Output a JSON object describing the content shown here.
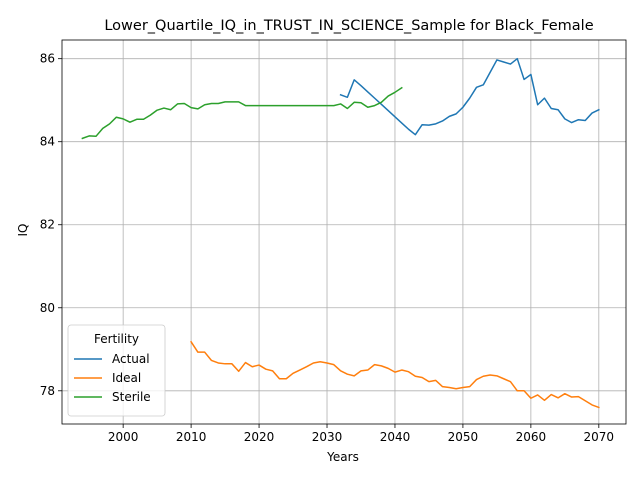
{
  "chart_data": {
    "type": "line",
    "title": "Lower_Quartile_IQ_in_TRUST_IN_SCIENCE_Sample for Black_Female",
    "xlabel": "Years",
    "ylabel": "IQ",
    "xlim": [
      1991,
      2074
    ],
    "ylim": [
      77.2,
      86.45
    ],
    "xticks": [
      2000,
      2010,
      2020,
      2030,
      2040,
      2050,
      2060,
      2070
    ],
    "yticks": [
      78,
      80,
      82,
      84,
      86
    ],
    "grid": true,
    "legend": {
      "title": "Fertility",
      "placement": "lower-left"
    },
    "series": [
      {
        "name": "Actual",
        "color": "#1f77b4",
        "x": [
          2032,
          2033,
          2034,
          2035,
          2036,
          2037,
          2038,
          2039,
          2040,
          2041,
          2042,
          2043,
          2044,
          2045,
          2046,
          2047,
          2048,
          2049,
          2050,
          2051,
          2052,
          2053,
          2054,
          2055,
          2056,
          2057,
          2058,
          2059,
          2060,
          2061,
          2062,
          2063,
          2064,
          2065,
          2066,
          2067,
          2068,
          2069,
          2070
        ],
        "y": [
          85.13,
          85.07,
          85.49,
          85.35,
          85.2,
          85.05,
          84.9,
          84.75,
          84.6,
          84.45,
          84.3,
          84.17,
          84.41,
          84.4,
          84.43,
          84.5,
          84.61,
          84.67,
          84.83,
          85.05,
          85.31,
          85.37,
          85.67,
          85.97,
          85.92,
          85.87,
          86.0,
          85.5,
          85.62,
          84.89,
          85.05,
          84.8,
          84.77,
          84.55,
          84.46,
          84.53,
          84.51,
          84.69,
          84.77
        ]
      },
      {
        "name": "Ideal",
        "color": "#ff7f0e",
        "x": [
          2010,
          2011,
          2012,
          2013,
          2014,
          2015,
          2016,
          2017,
          2018,
          2019,
          2020,
          2021,
          2022,
          2023,
          2024,
          2025,
          2026,
          2027,
          2028,
          2029,
          2030,
          2031,
          2032,
          2033,
          2034,
          2035,
          2036,
          2037,
          2038,
          2039,
          2040,
          2041,
          2042,
          2043,
          2044,
          2045,
          2046,
          2047,
          2048,
          2049,
          2050,
          2051,
          2052,
          2053,
          2054,
          2055,
          2056,
          2057,
          2058,
          2059,
          2060,
          2061,
          2062,
          2063,
          2064,
          2065,
          2066,
          2067,
          2068,
          2069,
          2070
        ],
        "y": [
          79.18,
          78.93,
          78.93,
          78.73,
          78.67,
          78.65,
          78.65,
          78.47,
          78.68,
          78.58,
          78.62,
          78.52,
          78.48,
          78.29,
          78.29,
          78.42,
          78.5,
          78.58,
          78.67,
          78.7,
          78.67,
          78.63,
          78.48,
          78.4,
          78.36,
          78.48,
          78.5,
          78.63,
          78.6,
          78.54,
          78.45,
          78.5,
          78.46,
          78.35,
          78.32,
          78.22,
          78.25,
          78.1,
          78.08,
          78.05,
          78.08,
          78.1,
          78.27,
          78.35,
          78.38,
          78.36,
          78.29,
          78.22,
          78.0,
          78.0,
          77.82,
          77.9,
          77.77,
          77.91,
          77.83,
          77.93,
          77.85,
          77.86,
          77.76,
          77.66,
          77.6
        ]
      },
      {
        "name": "Sterile",
        "color": "#2ca02c",
        "x": [
          1994,
          1995,
          1996,
          1997,
          1998,
          1999,
          2000,
          2001,
          2002,
          2003,
          2004,
          2005,
          2006,
          2007,
          2008,
          2009,
          2010,
          2011,
          2012,
          2013,
          2014,
          2015,
          2016,
          2017,
          2018,
          2019,
          2020,
          2021,
          2022,
          2023,
          2024,
          2025,
          2026,
          2027,
          2028,
          2029,
          2030,
          2031,
          2032,
          2033,
          2034,
          2035,
          2036,
          2037,
          2038,
          2039,
          2040,
          2041
        ],
        "y": [
          84.08,
          84.14,
          84.13,
          84.32,
          84.43,
          84.59,
          84.55,
          84.47,
          84.54,
          84.54,
          84.64,
          84.76,
          84.81,
          84.77,
          84.91,
          84.92,
          84.82,
          84.79,
          84.89,
          84.92,
          84.92,
          84.96,
          84.96,
          84.96,
          84.87,
          84.87,
          84.87,
          84.87,
          84.87,
          84.87,
          84.87,
          84.87,
          84.87,
          84.87,
          84.87,
          84.87,
          84.87,
          84.87,
          84.91,
          84.8,
          84.95,
          84.94,
          84.83,
          84.87,
          84.95,
          85.1,
          85.19,
          85.3
        ]
      }
    ]
  }
}
